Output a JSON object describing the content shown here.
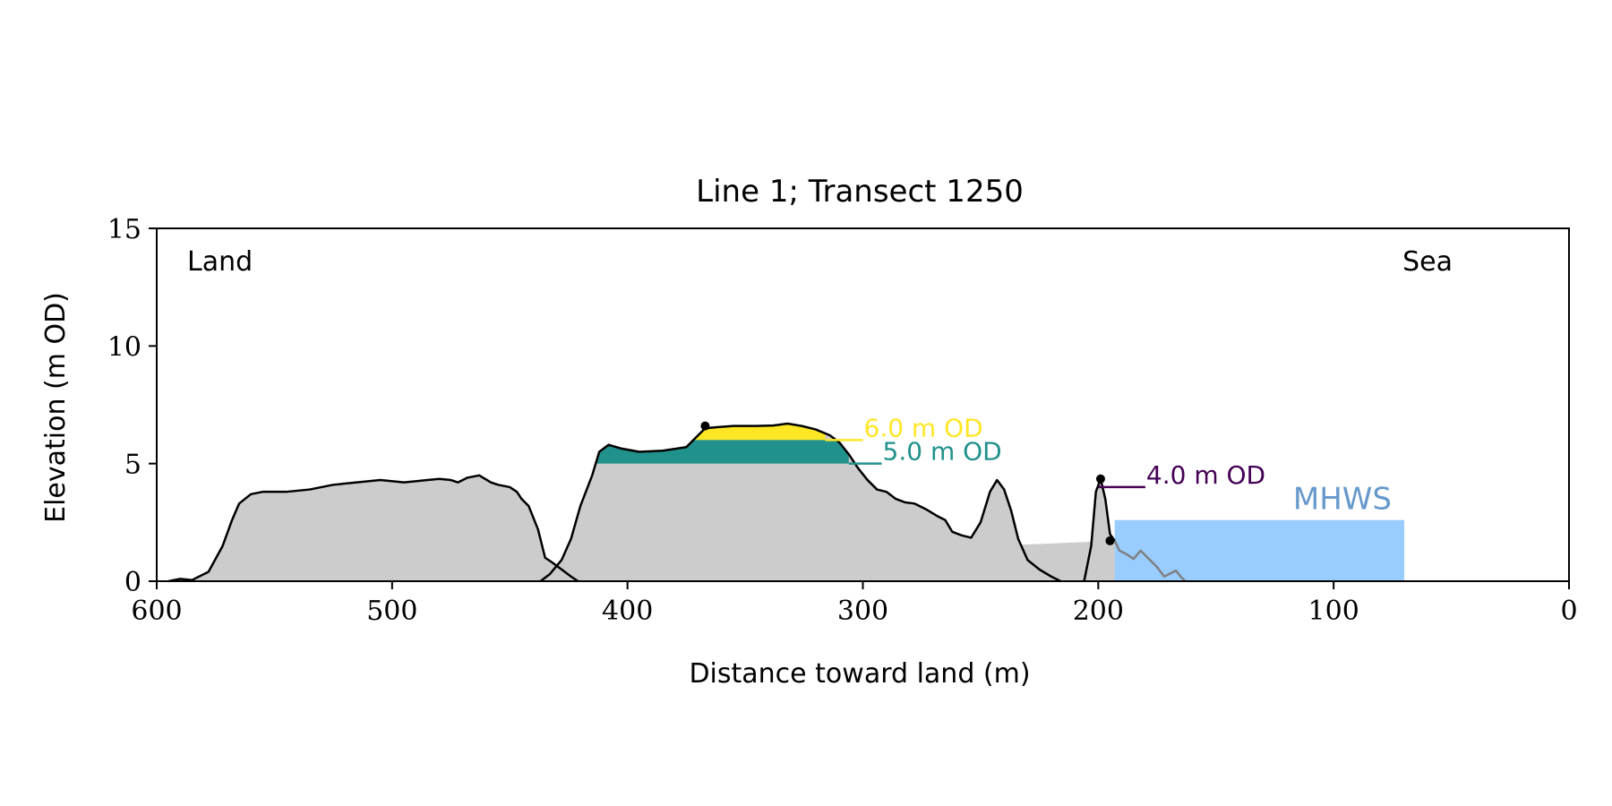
{
  "chart_data": {
    "type": "area",
    "title": "Line 1; Transect 1250",
    "xlabel": "Distance toward land (m)",
    "ylabel": "Elevation (m OD)",
    "xlim": [
      600,
      0
    ],
    "ylim": [
      0,
      15
    ],
    "xticks": [
      600,
      500,
      400,
      300,
      200,
      100,
      0
    ],
    "yticks": [
      0,
      5,
      10,
      15
    ],
    "grid": false,
    "corner_labels": {
      "left": "Land",
      "right": "Sea"
    },
    "colors": {
      "profile_fill": "#cccccc",
      "profile_line": "#000000",
      "mhws_fill": "#99ccff",
      "mhws_text": "#6699cc",
      "level_6": "#fde725",
      "level_5": "#21918c",
      "level_4": "#440154",
      "submerged_line": "#808080"
    },
    "profile_segments": [
      {
        "points": [
          [
            595,
            0
          ],
          [
            590,
            0.1
          ],
          [
            585,
            0.05
          ],
          [
            578,
            0.4
          ],
          [
            572,
            1.5
          ],
          [
            568,
            2.6
          ],
          [
            565,
            3.3
          ],
          [
            560,
            3.7
          ],
          [
            555,
            3.8
          ],
          [
            545,
            3.8
          ],
          [
            535,
            3.9
          ],
          [
            525,
            4.1
          ],
          [
            515,
            4.2
          ],
          [
            505,
            4.3
          ],
          [
            495,
            4.2
          ],
          [
            490,
            4.25
          ],
          [
            485,
            4.3
          ],
          [
            480,
            4.35
          ],
          [
            475,
            4.3
          ],
          [
            472,
            4.2
          ],
          [
            468,
            4.4
          ],
          [
            463,
            4.5
          ],
          [
            458,
            4.2
          ],
          [
            455,
            4.1
          ],
          [
            450,
            4.0
          ],
          [
            447,
            3.8
          ],
          [
            445,
            3.5
          ],
          [
            442,
            3.2
          ],
          [
            438,
            2.2
          ],
          [
            435,
            1.0
          ],
          [
            432,
            0.8
          ],
          [
            428,
            0.5
          ],
          [
            424,
            0.2
          ],
          [
            421,
            0
          ]
        ]
      },
      {
        "points": [
          [
            437,
            0
          ],
          [
            433,
            0.3
          ],
          [
            428,
            0.9
          ],
          [
            424,
            1.8
          ],
          [
            420,
            3.2
          ],
          [
            415,
            4.5
          ],
          [
            412,
            5.5
          ],
          [
            408,
            5.8
          ],
          [
            403,
            5.65
          ],
          [
            395,
            5.5
          ],
          [
            385,
            5.55
          ],
          [
            375,
            5.7
          ],
          [
            370,
            6.2
          ],
          [
            367,
            6.5
          ],
          [
            362,
            6.55
          ],
          [
            355,
            6.6
          ],
          [
            345,
            6.6
          ],
          [
            338,
            6.62
          ],
          [
            332,
            6.7
          ],
          [
            326,
            6.6
          ],
          [
            320,
            6.45
          ],
          [
            314,
            6.2
          ],
          [
            310,
            5.9
          ],
          [
            306,
            5.4
          ],
          [
            302,
            4.8
          ],
          [
            298,
            4.3
          ],
          [
            294,
            3.9
          ],
          [
            290,
            3.8
          ],
          [
            286,
            3.5
          ],
          [
            282,
            3.35
          ],
          [
            278,
            3.3
          ],
          [
            273,
            3.05
          ],
          [
            268,
            2.75
          ],
          [
            265,
            2.6
          ],
          [
            262,
            2.1
          ],
          [
            258,
            1.95
          ],
          [
            254,
            1.85
          ],
          [
            250,
            2.5
          ],
          [
            246,
            3.8
          ],
          [
            243,
            4.3
          ],
          [
            240,
            3.9
          ],
          [
            237,
            3.0
          ],
          [
            234,
            1.8
          ],
          [
            230,
            0.9
          ],
          [
            225,
            0.5
          ],
          [
            220,
            0.2
          ],
          [
            216,
            0
          ]
        ]
      },
      {
        "points": [
          [
            206,
            0
          ],
          [
            203,
            1.5
          ],
          [
            201,
            3.8
          ],
          [
            199,
            4.35
          ],
          [
            197,
            3.5
          ],
          [
            195,
            2.0
          ],
          [
            193,
            1.72
          ]
        ]
      }
    ],
    "submerged_profile": {
      "points": [
        [
          193,
          1.72
        ],
        [
          191,
          1.3
        ],
        [
          188,
          1.15
        ],
        [
          185,
          0.95
        ],
        [
          182,
          1.3
        ],
        [
          180,
          1.1
        ],
        [
          178,
          0.9
        ],
        [
          175,
          0.6
        ],
        [
          172,
          0.2
        ],
        [
          170,
          0.3
        ],
        [
          167,
          0.45
        ],
        [
          165,
          0.2
        ],
        [
          163,
          0
        ]
      ]
    },
    "mhws": {
      "label": "MHWS",
      "level": 2.6,
      "x_from": 193,
      "x_to": 70
    },
    "flood_levels": [
      {
        "label": "6.0 m OD",
        "level": 6.0,
        "color": "#fde725",
        "fill_from": 377,
        "fill_to": 316,
        "line_to": 300
      },
      {
        "label": "5.0 m OD",
        "level": 5.0,
        "color": "#21918c",
        "fill_from": 413,
        "fill_to": 306,
        "line_to": 292
      },
      {
        "label": "4.0 m OD",
        "level": 4.0,
        "color": "#440154",
        "fill_from": null,
        "fill_to": null,
        "line_from": 200,
        "line_to": 180
      }
    ],
    "markers": [
      [
        367,
        6.6
      ],
      [
        199,
        4.35
      ],
      [
        195,
        1.72
      ]
    ]
  }
}
